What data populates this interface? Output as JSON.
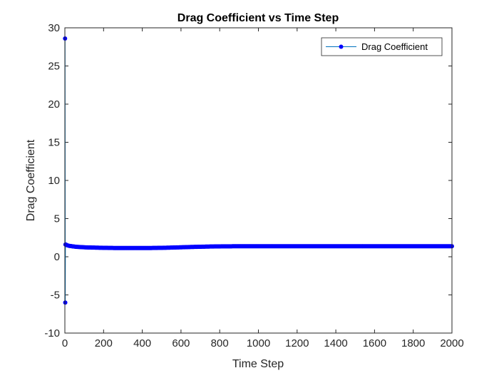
{
  "chart_data": {
    "type": "line",
    "title": "Drag Coefficient vs Time Step",
    "xlabel": "Time Step",
    "ylabel": "Drag Coefficient",
    "xlim": [
      0,
      2000
    ],
    "ylim": [
      -10,
      30
    ],
    "xticks": [
      0,
      200,
      400,
      600,
      800,
      1000,
      1200,
      1400,
      1600,
      1800,
      2000
    ],
    "yticks": [
      -10,
      -5,
      0,
      5,
      10,
      15,
      20,
      25,
      30
    ],
    "grid": false,
    "legend_position": "top-right",
    "line_color": "#0072BD",
    "marker_color": "#0000FF",
    "series": [
      {
        "name": "Drag Coefficient",
        "x": [
          1,
          2,
          3,
          4,
          5,
          6,
          8,
          10,
          15,
          20,
          30,
          40,
          50,
          60,
          80,
          100,
          120,
          150,
          200,
          250,
          300,
          350,
          400,
          450,
          500,
          550,
          600,
          650,
          700,
          750,
          800,
          850,
          900,
          950,
          1000,
          1100,
          1200,
          1300,
          1400,
          1500,
          1600,
          1700,
          1800,
          1900,
          2000
        ],
        "y": [
          28.6,
          -6.0,
          1.6,
          1.6,
          1.6,
          1.58,
          1.55,
          1.52,
          1.48,
          1.44,
          1.4,
          1.36,
          1.33,
          1.3,
          1.27,
          1.24,
          1.22,
          1.2,
          1.17,
          1.15,
          1.14,
          1.14,
          1.14,
          1.15,
          1.17,
          1.2,
          1.24,
          1.28,
          1.31,
          1.34,
          1.36,
          1.37,
          1.38,
          1.38,
          1.38,
          1.38,
          1.38,
          1.38,
          1.38,
          1.38,
          1.38,
          1.38,
          1.38,
          1.38,
          1.38
        ]
      }
    ]
  }
}
